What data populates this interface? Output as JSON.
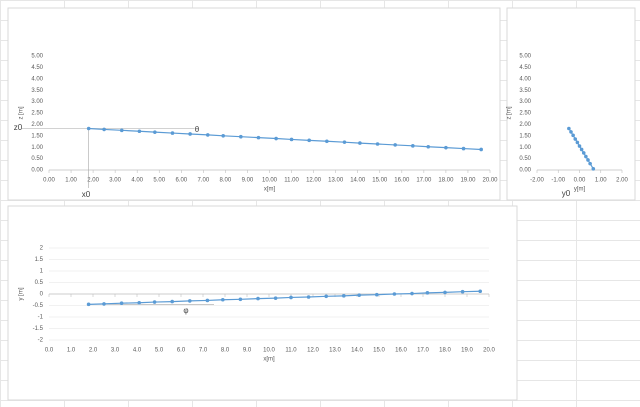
{
  "chart_data": [
    {
      "type": "scatter",
      "y_label": "z [m]",
      "x_label": "x[m]",
      "color": "#5b9bd5",
      "grid": false,
      "annotations": [
        "z0",
        "θ",
        "x0"
      ],
      "x": [
        1.8,
        2.5,
        3.3,
        4.1,
        4.8,
        5.6,
        6.4,
        7.2,
        7.9,
        8.7,
        9.5,
        10.3,
        11.0,
        11.8,
        12.6,
        13.4,
        14.1,
        14.9,
        15.7,
        16.5,
        17.2,
        18.0,
        18.8,
        19.6
      ],
      "values": [
        1.82,
        1.78,
        1.74,
        1.7,
        1.66,
        1.62,
        1.58,
        1.54,
        1.5,
        1.46,
        1.42,
        1.38,
        1.34,
        1.3,
        1.26,
        1.22,
        1.18,
        1.14,
        1.1,
        1.06,
        1.02,
        0.98,
        0.94,
        0.9
      ],
      "xlim": [
        0,
        20
      ],
      "xticks": [
        {
          "value": 0,
          "label": "0.00"
        },
        {
          "value": 1,
          "label": "1.00"
        },
        {
          "value": 2,
          "label": "2.00"
        },
        {
          "value": 3,
          "label": "3.00"
        },
        {
          "value": 4,
          "label": "4.00"
        },
        {
          "value": 5,
          "label": "5.00"
        },
        {
          "value": 6,
          "label": "6.00"
        },
        {
          "value": 7,
          "label": "7.00"
        },
        {
          "value": 8,
          "label": "8.00"
        },
        {
          "value": 9,
          "label": "9.00"
        },
        {
          "value": 10,
          "label": "10.00"
        },
        {
          "value": 11,
          "label": "11.00"
        },
        {
          "value": 12,
          "label": "12.00"
        },
        {
          "value": 13,
          "label": "13.00"
        },
        {
          "value": 14,
          "label": "14.00"
        },
        {
          "value": 15,
          "label": "15.00"
        },
        {
          "value": 16,
          "label": "16.00"
        },
        {
          "value": 17,
          "label": "17.00"
        },
        {
          "value": 18,
          "label": "18.00"
        },
        {
          "value": 19,
          "label": "19.00"
        },
        {
          "value": 20,
          "label": "20.00"
        }
      ],
      "ylim": [
        0,
        5
      ],
      "yticks": [
        {
          "value": 0,
          "label": "0.00"
        },
        {
          "value": 0.5,
          "label": "0.50"
        },
        {
          "value": 1,
          "label": "1.00"
        },
        {
          "value": 1.5,
          "label": "1.50"
        },
        {
          "value": 2,
          "label": "2.00"
        },
        {
          "value": 2.5,
          "label": "2.50"
        },
        {
          "value": 3,
          "label": "3.00"
        },
        {
          "value": 3.5,
          "label": "3.50"
        },
        {
          "value": 4,
          "label": "4.00"
        },
        {
          "value": 4.5,
          "label": "4.50"
        },
        {
          "value": 5,
          "label": "5.00"
        }
      ]
    },
    {
      "type": "scatter",
      "y_label": "y [m]",
      "x_label": "x[m]",
      "color": "#5b9bd5",
      "grid": true,
      "annotations": [
        "φ"
      ],
      "x": [
        1.8,
        2.5,
        3.3,
        4.1,
        4.8,
        5.6,
        6.4,
        7.2,
        7.9,
        8.7,
        9.5,
        10.3,
        11.0,
        11.8,
        12.6,
        13.4,
        14.1,
        14.9,
        15.7,
        16.5,
        17.2,
        18.0,
        18.8,
        19.6
      ],
      "values": [
        -0.45,
        -0.43,
        -0.4,
        -0.38,
        -0.35,
        -0.33,
        -0.3,
        -0.28,
        -0.25,
        -0.23,
        -0.2,
        -0.18,
        -0.15,
        -0.13,
        -0.1,
        -0.08,
        -0.05,
        -0.03,
        0.0,
        0.02,
        0.05,
        0.07,
        0.1,
        0.12
      ],
      "xlim": [
        0,
        20
      ],
      "xticks": [
        {
          "value": 0,
          "label": "0.0"
        },
        {
          "value": 1,
          "label": "1.0"
        },
        {
          "value": 2,
          "label": "2.0"
        },
        {
          "value": 3,
          "label": "3.0"
        },
        {
          "value": 4,
          "label": "4.0"
        },
        {
          "value": 5,
          "label": "5.0"
        },
        {
          "value": 6,
          "label": "6.0"
        },
        {
          "value": 7,
          "label": "7.0"
        },
        {
          "value": 8,
          "label": "8.0"
        },
        {
          "value": 9,
          "label": "9.0"
        },
        {
          "value": 10,
          "label": "10.0"
        },
        {
          "value": 11,
          "label": "11.0"
        },
        {
          "value": 12,
          "label": "12.0"
        },
        {
          "value": 13,
          "label": "13.0"
        },
        {
          "value": 14,
          "label": "14.0"
        },
        {
          "value": 15,
          "label": "15.0"
        },
        {
          "value": 16,
          "label": "16.0"
        },
        {
          "value": 17,
          "label": "17.0"
        },
        {
          "value": 18,
          "label": "18.0"
        },
        {
          "value": 19,
          "label": "19.0"
        },
        {
          "value": 20,
          "label": "20.0"
        }
      ],
      "ylim": [
        -2,
        2
      ],
      "yticks": [
        -2,
        -1.5,
        -1,
        -0.5,
        0,
        0.5,
        1,
        1.5,
        2
      ]
    },
    {
      "type": "scatter",
      "y_label": "z [m]",
      "x_label": "y[m]",
      "color": "#5b9bd5",
      "grid": false,
      "annotations": [
        "y0"
      ],
      "x": [
        -0.5,
        -0.4,
        -0.3,
        -0.2,
        -0.1,
        0.0,
        0.1,
        0.2,
        0.3,
        0.4,
        0.5,
        0.65
      ],
      "values": [
        1.82,
        1.67,
        1.52,
        1.36,
        1.21,
        1.05,
        0.9,
        0.75,
        0.59,
        0.44,
        0.28,
        0.05
      ],
      "xlim": [
        -2,
        2
      ],
      "xticks": [
        {
          "value": -2,
          "label": "-2.00"
        },
        {
          "value": -1,
          "label": "-1.00"
        },
        {
          "value": 0,
          "label": "0.00"
        },
        {
          "value": 1,
          "label": "1.00"
        },
        {
          "value": 2,
          "label": "2.00"
        }
      ],
      "ylim": [
        0,
        5
      ],
      "yticks": [
        {
          "value": 0,
          "label": "0.00"
        },
        {
          "value": 0.5,
          "label": "0.50"
        },
        {
          "value": 1,
          "label": "1.00"
        },
        {
          "value": 1.5,
          "label": "1.50"
        },
        {
          "value": 2,
          "label": "2.00"
        },
        {
          "value": 2.5,
          "label": "2.50"
        },
        {
          "value": 3,
          "label": "3.00"
        },
        {
          "value": 3.5,
          "label": "3.50"
        },
        {
          "value": 4,
          "label": "4.00"
        },
        {
          "value": 4.5,
          "label": "4.50"
        },
        {
          "value": 5,
          "label": "5.00"
        }
      ]
    }
  ]
}
